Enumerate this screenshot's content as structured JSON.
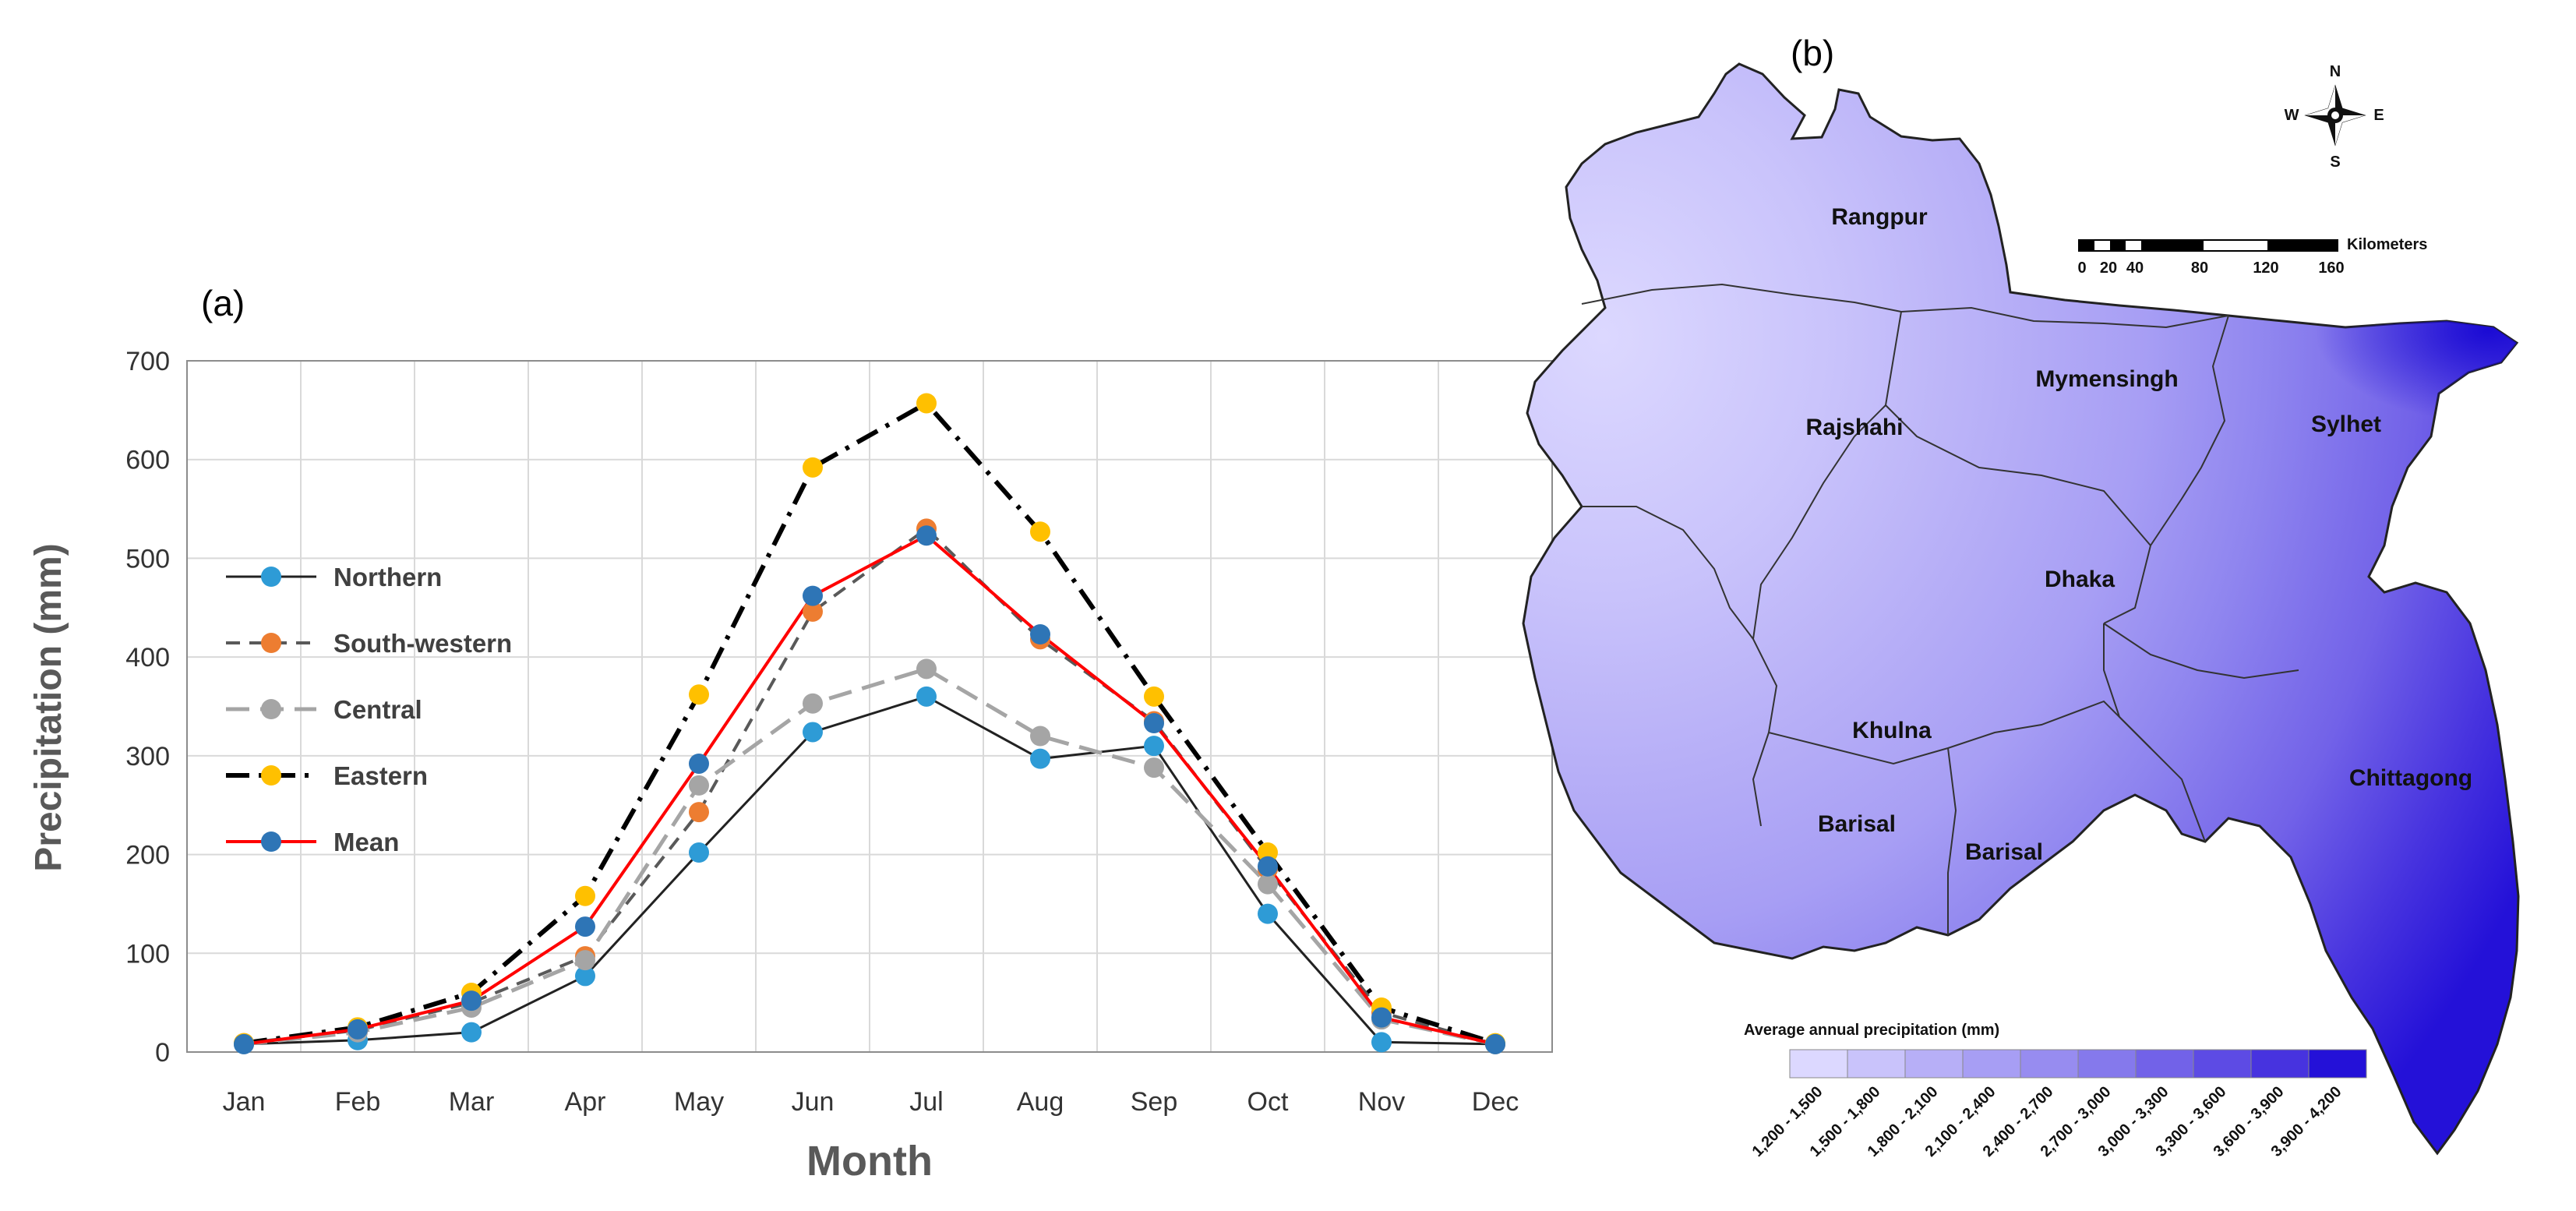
{
  "panel_a_label": "(a)",
  "panel_b_label": "(b)",
  "chart_data": {
    "type": "line",
    "title": "",
    "xlabel": "Month",
    "ylabel": "Precipitation (mm)",
    "ylim": [
      0,
      700
    ],
    "yticks": [
      0,
      100,
      200,
      300,
      400,
      500,
      600,
      700
    ],
    "categories": [
      "Jan",
      "Feb",
      "Mar",
      "Apr",
      "May",
      "Jun",
      "Jul",
      "Aug",
      "Sep",
      "Oct",
      "Nov",
      "Dec"
    ],
    "grid": true,
    "legend_position": "left",
    "series": [
      {
        "name": "Northern",
        "line_color": "#222222",
        "marker_color": "#2e9bd6",
        "dash": "solid",
        "values": [
          8,
          12,
          20,
          77,
          202,
          324,
          360,
          297,
          310,
          140,
          10,
          8
        ]
      },
      {
        "name": "South-western",
        "line_color": "#595959",
        "marker_color": "#ed7d31",
        "dash": "dash",
        "values": [
          9,
          22,
          50,
          97,
          243,
          446,
          530,
          418,
          335,
          185,
          40,
          8
        ]
      },
      {
        "name": "Central",
        "line_color": "#a5a5a5",
        "marker_color": "#a5a5a5",
        "dash": "longdash",
        "values": [
          8,
          20,
          45,
          93,
          270,
          353,
          388,
          320,
          288,
          170,
          33,
          8
        ]
      },
      {
        "name": "Eastern",
        "line_color": "#000000",
        "marker_color": "#ffc000",
        "dash": "dashdot",
        "values": [
          9,
          25,
          60,
          158,
          362,
          592,
          657,
          527,
          360,
          202,
          45,
          9
        ]
      },
      {
        "name": "Mean",
        "line_color": "#ff0000",
        "marker_color": "#2e75b6",
        "dash": "solid",
        "values": [
          8,
          23,
          52,
          127,
          292,
          462,
          523,
          423,
          333,
          188,
          35,
          8
        ]
      }
    ]
  },
  "map": {
    "compass": {
      "n": "N",
      "s": "S",
      "e": "E",
      "w": "W"
    },
    "scale_unit": "Kilometers",
    "scale_ticks": [
      "0",
      "20",
      "40",
      "80",
      "120",
      "160"
    ],
    "divisions": [
      "Rangpur",
      "Rajshahi",
      "Mymensingh",
      "Sylhet",
      "Dhaka",
      "Khulna",
      "Barisal",
      "Barisal",
      "Chittagong"
    ],
    "legend_title": "Average annual precipitation (mm)",
    "legend_classes": [
      {
        "label": "1,200 - 1,500",
        "color": "#dcd8ff"
      },
      {
        "label": "1,500 - 1,800",
        "color": "#c9c3fb"
      },
      {
        "label": "1,800 - 2,100",
        "color": "#b7aff7"
      },
      {
        "label": "2,100 - 2,400",
        "color": "#a79ef4"
      },
      {
        "label": "2,400 - 2,700",
        "color": "#978cf0"
      },
      {
        "label": "2,700 - 3,000",
        "color": "#8579ec"
      },
      {
        "label": "3,000 - 3,300",
        "color": "#7262e8"
      },
      {
        "label": "3,300 - 3,600",
        "color": "#5d4be4"
      },
      {
        "label": "3,600 - 3,900",
        "color": "#4733df"
      },
      {
        "label": "3,900 - 4,200",
        "color": "#2411d8"
      }
    ]
  }
}
